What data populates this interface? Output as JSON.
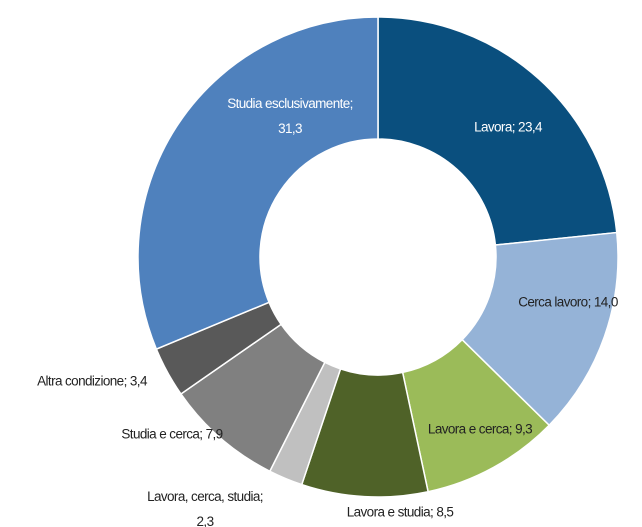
{
  "chart_data": {
    "type": "donut",
    "values": [
      23.4,
      14.0,
      9.3,
      8.5,
      2.3,
      7.9,
      3.4,
      31.3
    ],
    "value_labels": [
      "Lavora; 23,4",
      "Cerca lavoro; 14,0",
      "Lavora e cerca; 9,3",
      "Lavora e studia; 8,5",
      "Lavora, cerca, studia; 2,3",
      "Studia e cerca; 7,9",
      "Altra condizione; 3,4",
      "Studia esclusivamente; 31,3"
    ],
    "colors": [
      "#0a4f7e",
      "#95b3d7",
      "#9bbb59",
      "#4f6228",
      "#c0c0c0",
      "#808080",
      "#595959",
      "#4f81bd"
    ]
  }
}
